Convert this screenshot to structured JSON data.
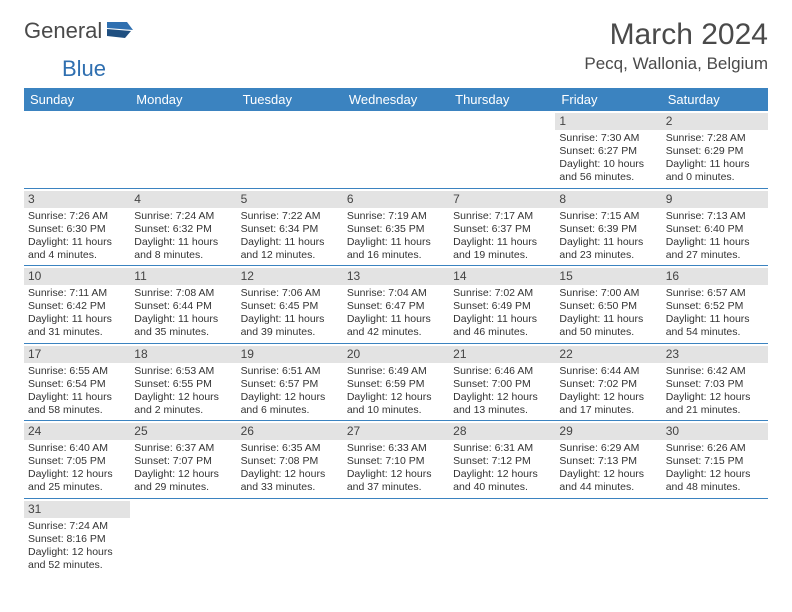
{
  "brand": {
    "part1": "General",
    "part2": "Blue"
  },
  "title": "March 2024",
  "location": "Pecq, Wallonia, Belgium",
  "colors": {
    "header_bg": "#3b83c0",
    "header_text": "#ffffff",
    "daynum_bg": "#e3e3e3",
    "border": "#3b83c0",
    "text": "#333333",
    "logo_gray": "#4a4a4a",
    "logo_blue": "#2f6fb0"
  },
  "day_names": [
    "Sunday",
    "Monday",
    "Tuesday",
    "Wednesday",
    "Thursday",
    "Friday",
    "Saturday"
  ],
  "weeks": [
    [
      {
        "n": "",
        "lines": []
      },
      {
        "n": "",
        "lines": []
      },
      {
        "n": "",
        "lines": []
      },
      {
        "n": "",
        "lines": []
      },
      {
        "n": "",
        "lines": []
      },
      {
        "n": "1",
        "lines": [
          "Sunrise: 7:30 AM",
          "Sunset: 6:27 PM",
          "Daylight: 10 hours",
          "and 56 minutes."
        ]
      },
      {
        "n": "2",
        "lines": [
          "Sunrise: 7:28 AM",
          "Sunset: 6:29 PM",
          "Daylight: 11 hours",
          "and 0 minutes."
        ]
      }
    ],
    [
      {
        "n": "3",
        "lines": [
          "Sunrise: 7:26 AM",
          "Sunset: 6:30 PM",
          "Daylight: 11 hours",
          "and 4 minutes."
        ]
      },
      {
        "n": "4",
        "lines": [
          "Sunrise: 7:24 AM",
          "Sunset: 6:32 PM",
          "Daylight: 11 hours",
          "and 8 minutes."
        ]
      },
      {
        "n": "5",
        "lines": [
          "Sunrise: 7:22 AM",
          "Sunset: 6:34 PM",
          "Daylight: 11 hours",
          "and 12 minutes."
        ]
      },
      {
        "n": "6",
        "lines": [
          "Sunrise: 7:19 AM",
          "Sunset: 6:35 PM",
          "Daylight: 11 hours",
          "and 16 minutes."
        ]
      },
      {
        "n": "7",
        "lines": [
          "Sunrise: 7:17 AM",
          "Sunset: 6:37 PM",
          "Daylight: 11 hours",
          "and 19 minutes."
        ]
      },
      {
        "n": "8",
        "lines": [
          "Sunrise: 7:15 AM",
          "Sunset: 6:39 PM",
          "Daylight: 11 hours",
          "and 23 minutes."
        ]
      },
      {
        "n": "9",
        "lines": [
          "Sunrise: 7:13 AM",
          "Sunset: 6:40 PM",
          "Daylight: 11 hours",
          "and 27 minutes."
        ]
      }
    ],
    [
      {
        "n": "10",
        "lines": [
          "Sunrise: 7:11 AM",
          "Sunset: 6:42 PM",
          "Daylight: 11 hours",
          "and 31 minutes."
        ]
      },
      {
        "n": "11",
        "lines": [
          "Sunrise: 7:08 AM",
          "Sunset: 6:44 PM",
          "Daylight: 11 hours",
          "and 35 minutes."
        ]
      },
      {
        "n": "12",
        "lines": [
          "Sunrise: 7:06 AM",
          "Sunset: 6:45 PM",
          "Daylight: 11 hours",
          "and 39 minutes."
        ]
      },
      {
        "n": "13",
        "lines": [
          "Sunrise: 7:04 AM",
          "Sunset: 6:47 PM",
          "Daylight: 11 hours",
          "and 42 minutes."
        ]
      },
      {
        "n": "14",
        "lines": [
          "Sunrise: 7:02 AM",
          "Sunset: 6:49 PM",
          "Daylight: 11 hours",
          "and 46 minutes."
        ]
      },
      {
        "n": "15",
        "lines": [
          "Sunrise: 7:00 AM",
          "Sunset: 6:50 PM",
          "Daylight: 11 hours",
          "and 50 minutes."
        ]
      },
      {
        "n": "16",
        "lines": [
          "Sunrise: 6:57 AM",
          "Sunset: 6:52 PM",
          "Daylight: 11 hours",
          "and 54 minutes."
        ]
      }
    ],
    [
      {
        "n": "17",
        "lines": [
          "Sunrise: 6:55 AM",
          "Sunset: 6:54 PM",
          "Daylight: 11 hours",
          "and 58 minutes."
        ]
      },
      {
        "n": "18",
        "lines": [
          "Sunrise: 6:53 AM",
          "Sunset: 6:55 PM",
          "Daylight: 12 hours",
          "and 2 minutes."
        ]
      },
      {
        "n": "19",
        "lines": [
          "Sunrise: 6:51 AM",
          "Sunset: 6:57 PM",
          "Daylight: 12 hours",
          "and 6 minutes."
        ]
      },
      {
        "n": "20",
        "lines": [
          "Sunrise: 6:49 AM",
          "Sunset: 6:59 PM",
          "Daylight: 12 hours",
          "and 10 minutes."
        ]
      },
      {
        "n": "21",
        "lines": [
          "Sunrise: 6:46 AM",
          "Sunset: 7:00 PM",
          "Daylight: 12 hours",
          "and 13 minutes."
        ]
      },
      {
        "n": "22",
        "lines": [
          "Sunrise: 6:44 AM",
          "Sunset: 7:02 PM",
          "Daylight: 12 hours",
          "and 17 minutes."
        ]
      },
      {
        "n": "23",
        "lines": [
          "Sunrise: 6:42 AM",
          "Sunset: 7:03 PM",
          "Daylight: 12 hours",
          "and 21 minutes."
        ]
      }
    ],
    [
      {
        "n": "24",
        "lines": [
          "Sunrise: 6:40 AM",
          "Sunset: 7:05 PM",
          "Daylight: 12 hours",
          "and 25 minutes."
        ]
      },
      {
        "n": "25",
        "lines": [
          "Sunrise: 6:37 AM",
          "Sunset: 7:07 PM",
          "Daylight: 12 hours",
          "and 29 minutes."
        ]
      },
      {
        "n": "26",
        "lines": [
          "Sunrise: 6:35 AM",
          "Sunset: 7:08 PM",
          "Daylight: 12 hours",
          "and 33 minutes."
        ]
      },
      {
        "n": "27",
        "lines": [
          "Sunrise: 6:33 AM",
          "Sunset: 7:10 PM",
          "Daylight: 12 hours",
          "and 37 minutes."
        ]
      },
      {
        "n": "28",
        "lines": [
          "Sunrise: 6:31 AM",
          "Sunset: 7:12 PM",
          "Daylight: 12 hours",
          "and 40 minutes."
        ]
      },
      {
        "n": "29",
        "lines": [
          "Sunrise: 6:29 AM",
          "Sunset: 7:13 PM",
          "Daylight: 12 hours",
          "and 44 minutes."
        ]
      },
      {
        "n": "30",
        "lines": [
          "Sunrise: 6:26 AM",
          "Sunset: 7:15 PM",
          "Daylight: 12 hours",
          "and 48 minutes."
        ]
      }
    ],
    [
      {
        "n": "31",
        "lines": [
          "Sunrise: 7:24 AM",
          "Sunset: 8:16 PM",
          "Daylight: 12 hours",
          "and 52 minutes."
        ]
      },
      {
        "n": "",
        "lines": []
      },
      {
        "n": "",
        "lines": []
      },
      {
        "n": "",
        "lines": []
      },
      {
        "n": "",
        "lines": []
      },
      {
        "n": "",
        "lines": []
      },
      {
        "n": "",
        "lines": []
      }
    ]
  ]
}
